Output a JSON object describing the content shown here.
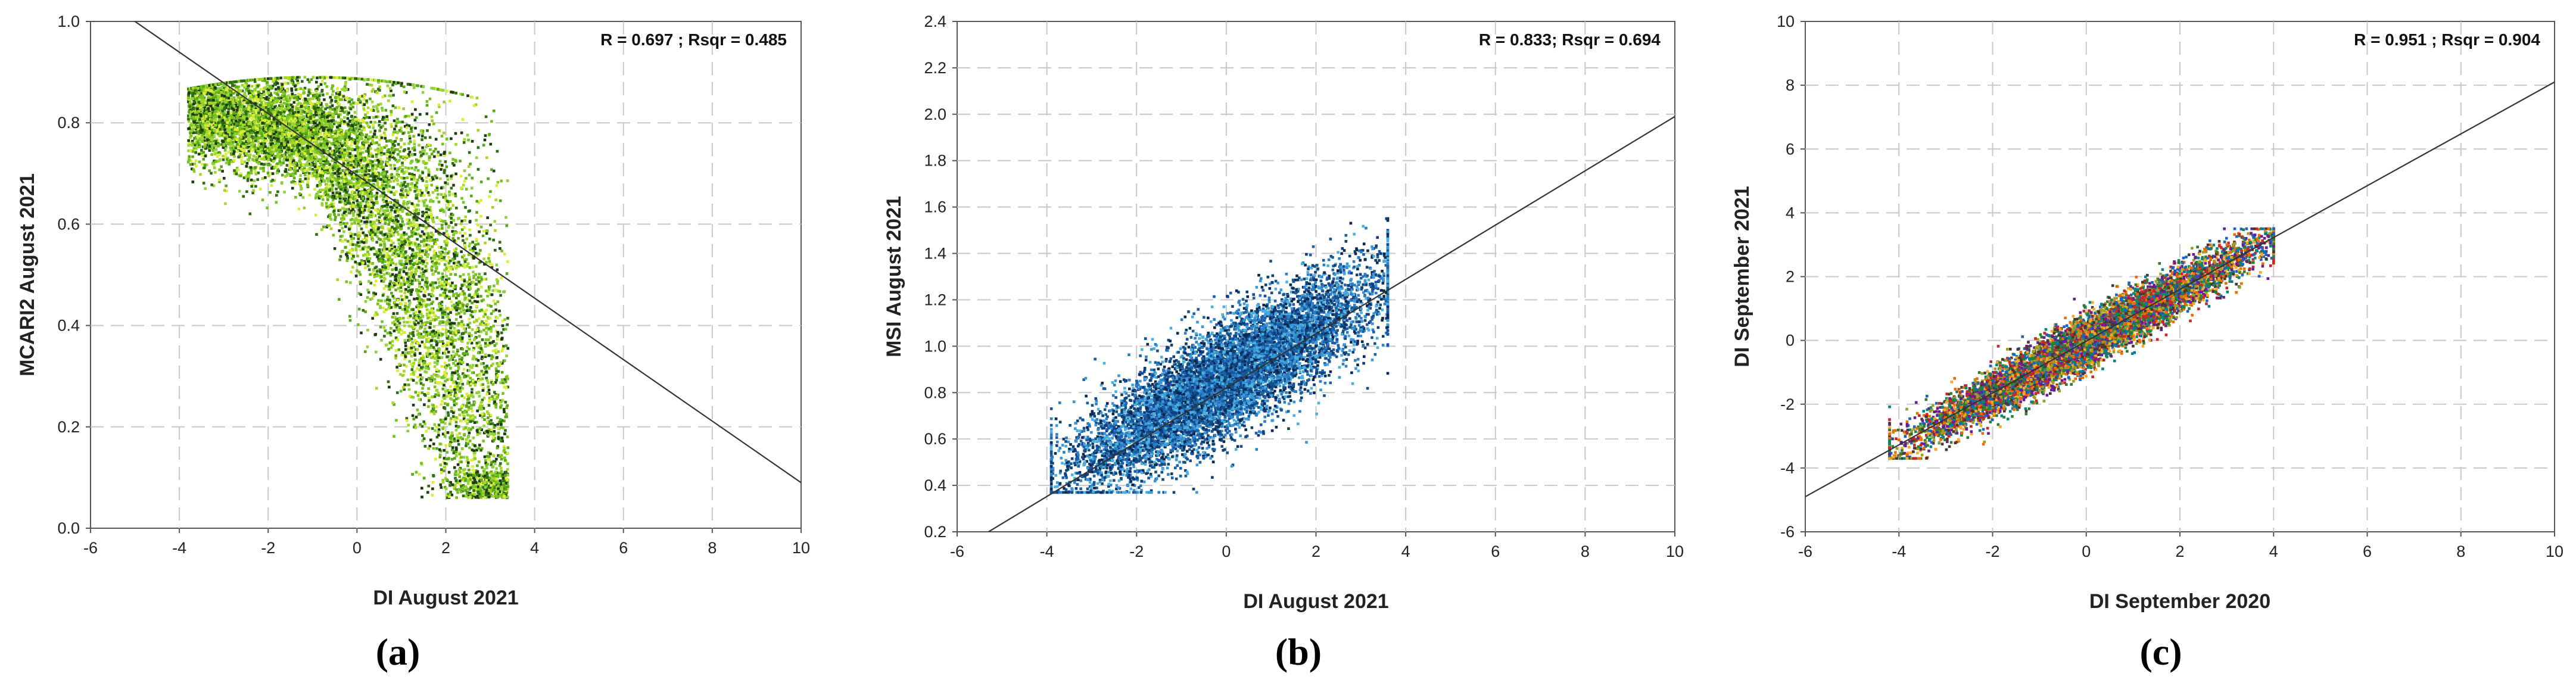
{
  "chart_data": [
    {
      "id": "a",
      "type": "scatter",
      "panel_label": "(a)",
      "xlabel": "DI August 2021",
      "ylabel": "MCARI2 August 2021",
      "annotation": "R = 0.697 ; Rsqr = 0.485",
      "xlim": [
        -6,
        10
      ],
      "ylim": [
        0.0,
        1.0
      ],
      "xticks": [
        -6,
        -4,
        -2,
        0,
        2,
        4,
        6,
        8,
        10
      ],
      "yticks": [
        0.0,
        0.2,
        0.4,
        0.6,
        0.8,
        1.0
      ],
      "tick_decimals": 1,
      "grid": true,
      "colors": [
        "#76c21e",
        "#5aa816",
        "#a7d62a",
        "#d9ee35",
        "#2f6f12",
        "#1d3d10",
        "#8fd13a"
      ],
      "regression_line": {
        "x": [
          -5.0,
          10.0
        ],
        "y": [
          1.0,
          0.09
        ]
      },
      "cluster": {
        "x_range": [
          -3.9,
          3.5
        ],
        "y_range": [
          0.07,
          0.89
        ],
        "n_points_approx": 9000
      }
    },
    {
      "id": "b",
      "type": "scatter",
      "panel_label": "(b)",
      "xlabel": "DI August 2021",
      "ylabel": "MSI August 2021",
      "annotation": "R = 0.833; Rsqr = 0.694",
      "xlim": [
        -6,
        10
      ],
      "ylim": [
        0.2,
        2.4
      ],
      "xticks": [
        -6,
        -4,
        -2,
        0,
        2,
        4,
        6,
        8,
        10
      ],
      "yticks": [
        0.2,
        0.4,
        0.6,
        0.8,
        1.0,
        1.2,
        1.4,
        1.6,
        1.8,
        2.0,
        2.2,
        2.4
      ],
      "tick_decimals": 1,
      "grid": true,
      "colors": [
        "#1b5fa8",
        "#2a7fc8",
        "#0e3f78",
        "#3a98d8",
        "#0a2a55",
        "#4ab0e0",
        "#14508f"
      ],
      "regression_line": {
        "x": [
          -5.3,
          10.0
        ],
        "y": [
          0.2,
          1.99
        ]
      },
      "cluster": {
        "x_range": [
          -3.9,
          3.6
        ],
        "y_range": [
          0.37,
          1.55
        ],
        "n_points_approx": 9000
      }
    },
    {
      "id": "c",
      "type": "scatter",
      "panel_label": "(c)",
      "xlabel": "DI September 2020",
      "ylabel": "DI September 2021",
      "annotation": "R = 0.951 ; Rsqr = 0.904",
      "xlim": [
        -6,
        10
      ],
      "ylim": [
        -6,
        10
      ],
      "xticks": [
        -6,
        -4,
        -2,
        0,
        2,
        4,
        6,
        8,
        10
      ],
      "yticks": [
        -6,
        -4,
        -2,
        0,
        2,
        4,
        6,
        8,
        10
      ],
      "tick_decimals": 0,
      "grid": true,
      "colors": [
        "#2e7d32",
        "#c62828",
        "#f9a825",
        "#6a1b9a",
        "#1565c0",
        "#ef6c00",
        "#4e342e",
        "#00897b",
        "#9e9d24"
      ],
      "regression_line": {
        "x": [
          -6.0,
          10.0
        ],
        "y": [
          -4.9,
          8.1
        ]
      },
      "cluster": {
        "x_range": [
          -4.2,
          4.0
        ],
        "y_range": [
          -3.7,
          3.5
        ],
        "n_points_approx": 9000
      }
    }
  ]
}
